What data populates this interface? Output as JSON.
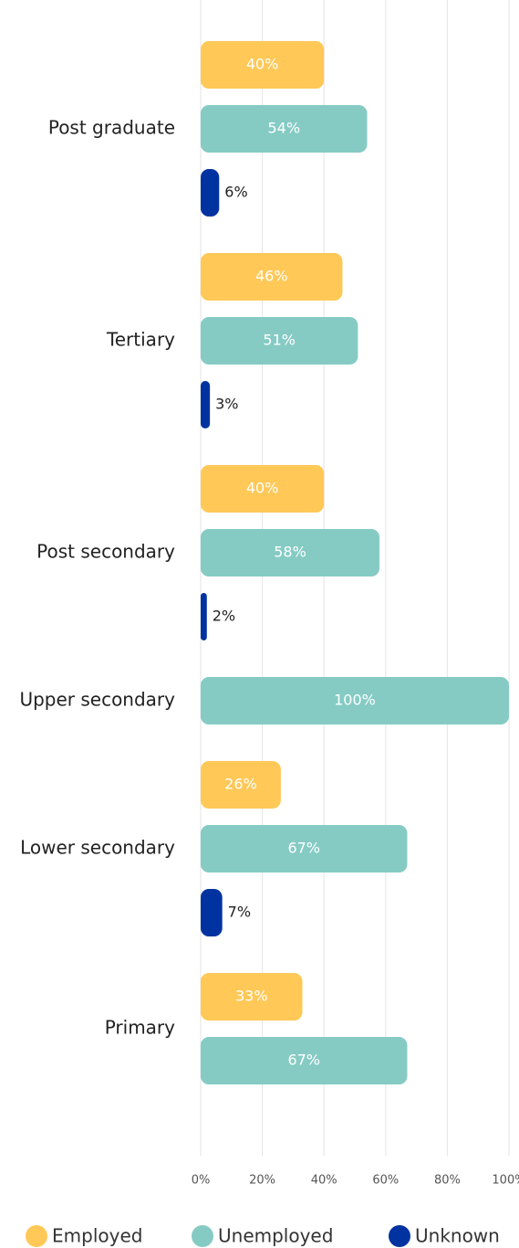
{
  "chart_data": {
    "type": "bar",
    "orientation": "horizontal",
    "categories": [
      "Post graduate",
      "Tertiary",
      "Post secondary",
      "Upper secondary",
      "Lower secondary",
      "Primary"
    ],
    "series": [
      {
        "name": "Employed",
        "color": "#ffc857",
        "values": [
          40,
          46,
          40,
          null,
          26,
          33
        ],
        "value_labels": [
          "40%",
          "46%",
          "40%",
          null,
          "26%",
          "33%"
        ]
      },
      {
        "name": "Unemployed",
        "color": "#85cbc4",
        "values": [
          54,
          51,
          58,
          100,
          67,
          67
        ],
        "value_labels": [
          "54%",
          "51%",
          "58%",
          "100%",
          "67%",
          "67%"
        ]
      },
      {
        "name": "Unknown",
        "color": "#0033a0",
        "values": [
          6,
          3,
          2,
          null,
          7,
          null
        ],
        "value_labels": [
          "6%",
          "3%",
          "2%",
          null,
          "7%",
          null
        ]
      }
    ],
    "xlim": [
      0,
      100
    ],
    "xticks": [
      {
        "value": 0,
        "label": "0%"
      },
      {
        "value": 20,
        "label": "20%"
      },
      {
        "value": 40,
        "label": "40%"
      },
      {
        "value": 60,
        "label": "60%"
      },
      {
        "value": 80,
        "label": "80%"
      },
      {
        "value": 100,
        "label": "100%"
      }
    ],
    "grid": true,
    "legend": "bottom"
  }
}
